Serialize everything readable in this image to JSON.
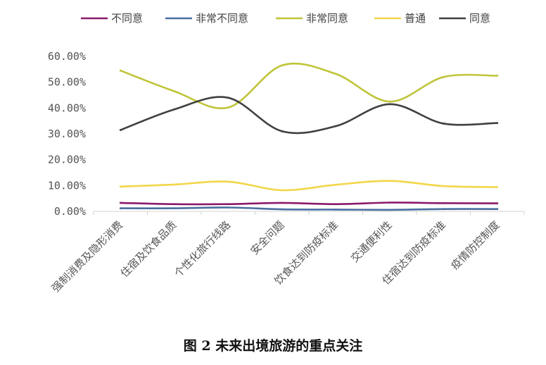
{
  "chart_data": {
    "type": "line",
    "title": "",
    "caption": "图 2  未来出境旅游的重点关注",
    "xlabel": "",
    "ylabel": "",
    "ylim": [
      0,
      0.6
    ],
    "y_ticks": [
      "0.00%",
      "10.00%",
      "20.00%",
      "30.00%",
      "40.00%",
      "50.00%",
      "60.00%"
    ],
    "grid": false,
    "legend_position": "top",
    "smooth": true,
    "categories": [
      "强制消费及隐形消费",
      "住宿及饮食品质",
      "个性化旅行线路",
      "安全问题",
      "饮食达到防疫标准",
      "交通便利性",
      "住宿达到防疫标准",
      "疫情防控制度"
    ],
    "series": [
      {
        "name": "不同意",
        "color": "#8B1A6B",
        "values": [
          0.033,
          0.028,
          0.028,
          0.033,
          0.028,
          0.034,
          0.032,
          0.031
        ]
      },
      {
        "name": "非常不同意",
        "color": "#4A6EA0",
        "values": [
          0.012,
          0.012,
          0.015,
          0.008,
          0.007,
          0.006,
          0.009,
          0.009
        ]
      },
      {
        "name": "非常同意",
        "color": "#BFC538",
        "values": [
          0.545,
          0.465,
          0.402,
          0.565,
          0.532,
          0.425,
          0.52,
          0.525
        ]
      },
      {
        "name": "普通",
        "color": "#F2D64A",
        "values": [
          0.096,
          0.104,
          0.115,
          0.082,
          0.103,
          0.118,
          0.098,
          0.094
        ]
      },
      {
        "name": "同意",
        "color": "#404040",
        "values": [
          0.315,
          0.395,
          0.44,
          0.31,
          0.33,
          0.415,
          0.34,
          0.342
        ]
      }
    ]
  }
}
